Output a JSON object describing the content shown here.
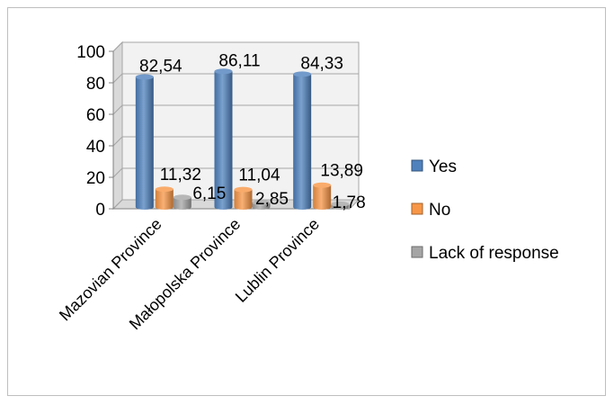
{
  "chart_data": {
    "type": "bar",
    "title": "",
    "xlabel": "",
    "ylabel": "",
    "ylim": [
      0,
      100
    ],
    "yticks": [
      "0",
      "20",
      "40",
      "60",
      "80",
      "100"
    ],
    "grid": true,
    "legend_position": "right",
    "categories": [
      "Mazovian Province",
      "Małopolska Province",
      "Lublin Province"
    ],
    "series": [
      {
        "name": "Yes",
        "values": [
          82.54,
          86.11,
          84.33
        ],
        "labels": [
          "82,54",
          "86,11",
          "84,33"
        ],
        "color": "#4f81bd"
      },
      {
        "name": "No",
        "values": [
          11.32,
          11.04,
          13.89
        ],
        "labels": [
          "11,32",
          "11,04",
          "13,89"
        ],
        "color": "#f79646"
      },
      {
        "name": "Lack of response",
        "values": [
          6.15,
          2.85,
          1.78
        ],
        "labels": [
          "6,15",
          "2,85",
          "1,78"
        ],
        "color": "#a5a5a5"
      }
    ]
  }
}
